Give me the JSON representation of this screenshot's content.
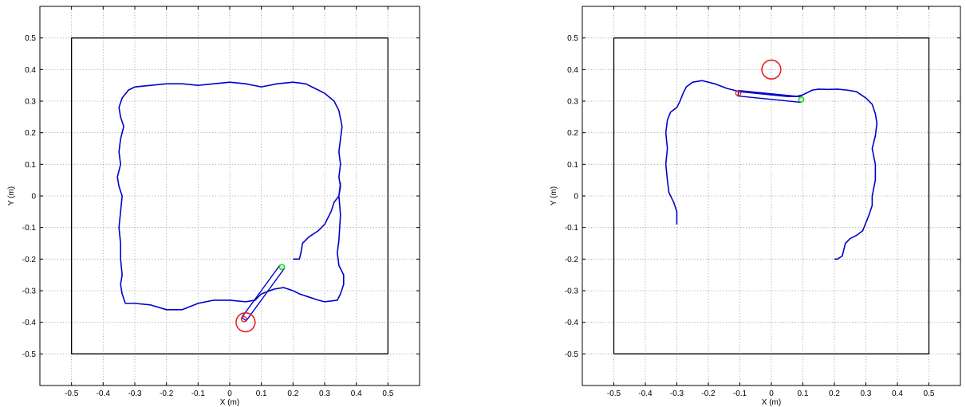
{
  "colors": {
    "path": "#0000cc",
    "target": "#e8231f",
    "tip": "#22cc22",
    "frame": "#000000",
    "grid": "#9a9a9a"
  },
  "chart_data": [
    {
      "type": "line",
      "xlabel": "X (m)",
      "ylabel": "Y (m)",
      "xlim": [
        -0.6,
        0.6
      ],
      "ylim": [
        -0.6,
        0.6
      ],
      "xticks": [
        "-0.5",
        "-0.4",
        "-0.3",
        "-0.2",
        "-0.1",
        "0",
        "0.1",
        "0.2",
        "0.3",
        "0.4",
        "0.5"
      ],
      "yticks": [
        "-0.5",
        "-0.4",
        "-0.3",
        "-0.2",
        "-0.1",
        "0",
        "0.1",
        "0.2",
        "0.3",
        "0.4",
        "0.5"
      ],
      "grid": true,
      "workspace_boundary": [
        [
          -0.5,
          -0.5
        ],
        [
          0.5,
          -0.5
        ],
        [
          0.5,
          0.5
        ],
        [
          -0.5,
          0.5
        ]
      ],
      "trajectory": [
        [
          0.2,
          -0.2
        ],
        [
          0.22,
          -0.2
        ],
        [
          0.225,
          -0.18
        ],
        [
          0.23,
          -0.15
        ],
        [
          0.25,
          -0.13
        ],
        [
          0.28,
          -0.11
        ],
        [
          0.3,
          -0.09
        ],
        [
          0.32,
          -0.05
        ],
        [
          0.33,
          -0.02
        ],
        [
          0.345,
          0.0
        ],
        [
          0.35,
          0.04
        ],
        [
          0.345,
          0.0
        ],
        [
          0.35,
          -0.06
        ],
        [
          0.345,
          -0.14
        ],
        [
          0.34,
          -0.18
        ],
        [
          0.345,
          -0.22
        ],
        [
          0.36,
          -0.25
        ],
        [
          0.36,
          -0.28
        ],
        [
          0.35,
          -0.31
        ],
        [
          0.34,
          -0.33
        ],
        [
          0.3,
          -0.335
        ],
        [
          0.28,
          -0.33
        ],
        [
          0.25,
          -0.32
        ],
        [
          0.22,
          -0.31
        ],
        [
          0.2,
          -0.3
        ],
        [
          0.17,
          -0.29
        ],
        [
          0.14,
          -0.295
        ],
        [
          0.1,
          -0.31
        ],
        [
          0.08,
          -0.33
        ],
        [
          0.05,
          -0.335
        ],
        [
          0.0,
          -0.33
        ],
        [
          -0.05,
          -0.33
        ],
        [
          -0.1,
          -0.34
        ],
        [
          -0.15,
          -0.36
        ],
        [
          -0.2,
          -0.36
        ],
        [
          -0.25,
          -0.345
        ],
        [
          -0.3,
          -0.34
        ],
        [
          -0.33,
          -0.34
        ],
        [
          -0.34,
          -0.31
        ],
        [
          -0.345,
          -0.28
        ],
        [
          -0.34,
          -0.25
        ],
        [
          -0.345,
          -0.2
        ],
        [
          -0.345,
          -0.15
        ],
        [
          -0.35,
          -0.1
        ],
        [
          -0.345,
          -0.05
        ],
        [
          -0.34,
          0.0
        ],
        [
          -0.35,
          0.03
        ],
        [
          -0.355,
          0.06
        ],
        [
          -0.345,
          0.1
        ],
        [
          -0.35,
          0.14
        ],
        [
          -0.345,
          0.18
        ],
        [
          -0.335,
          0.22
        ],
        [
          -0.345,
          0.25
        ],
        [
          -0.35,
          0.28
        ],
        [
          -0.34,
          0.31
        ],
        [
          -0.32,
          0.335
        ],
        [
          -0.3,
          0.345
        ],
        [
          -0.25,
          0.35
        ],
        [
          -0.2,
          0.355
        ],
        [
          -0.15,
          0.355
        ],
        [
          -0.1,
          0.35
        ],
        [
          -0.05,
          0.355
        ],
        [
          0.0,
          0.36
        ],
        [
          0.05,
          0.355
        ],
        [
          0.1,
          0.345
        ],
        [
          0.15,
          0.355
        ],
        [
          0.2,
          0.36
        ],
        [
          0.24,
          0.355
        ],
        [
          0.27,
          0.34
        ],
        [
          0.3,
          0.325
        ],
        [
          0.33,
          0.3
        ],
        [
          0.345,
          0.27
        ],
        [
          0.355,
          0.22
        ],
        [
          0.35,
          0.18
        ],
        [
          0.345,
          0.14
        ],
        [
          0.35,
          0.1
        ],
        [
          0.345,
          0.06
        ],
        [
          0.35,
          0.03
        ],
        [
          0.345,
          0.0
        ]
      ],
      "arm": [
        [
          0.045,
          -0.39
        ],
        [
          0.165,
          -0.225
        ]
      ],
      "arm_base": [
        0.045,
        -0.39
      ],
      "end_effector": [
        0.165,
        -0.225
      ],
      "target": {
        "x": 0.05,
        "y": -0.4,
        "r": 0.03
      }
    },
    {
      "type": "line",
      "xlabel": "X (m)",
      "ylabel": "Y (m)",
      "xlim": [
        -0.6,
        0.6
      ],
      "ylim": [
        -0.6,
        0.6
      ],
      "xticks": [
        "-0.5",
        "-0.4",
        "-0.3",
        "-0.2",
        "-0.1",
        "0",
        "0.1",
        "0.2",
        "0.3",
        "0.4",
        "0.5"
      ],
      "yticks": [
        "-0.5",
        "-0.4",
        "-0.3",
        "-0.2",
        "-0.1",
        "0",
        "0.1",
        "0.2",
        "0.3",
        "0.4",
        "0.5"
      ],
      "grid": true,
      "workspace_boundary": [
        [
          -0.5,
          -0.5
        ],
        [
          0.5,
          -0.5
        ],
        [
          0.5,
          0.5
        ],
        [
          -0.5,
          0.5
        ]
      ],
      "trajectory": [
        [
          -0.3,
          -0.09
        ],
        [
          -0.3,
          -0.05
        ],
        [
          -0.31,
          -0.02
        ],
        [
          -0.325,
          0.01
        ],
        [
          -0.33,
          0.05
        ],
        [
          -0.335,
          0.1
        ],
        [
          -0.33,
          0.15
        ],
        [
          -0.335,
          0.2
        ],
        [
          -0.33,
          0.24
        ],
        [
          -0.32,
          0.265
        ],
        [
          -0.3,
          0.28
        ],
        [
          -0.29,
          0.3
        ],
        [
          -0.28,
          0.325
        ],
        [
          -0.27,
          0.345
        ],
        [
          -0.25,
          0.36
        ],
        [
          -0.22,
          0.365
        ],
        [
          -0.18,
          0.355
        ],
        [
          -0.14,
          0.34
        ],
        [
          -0.1,
          0.33
        ],
        [
          -0.05,
          0.325
        ],
        [
          0.0,
          0.32
        ],
        [
          0.05,
          0.315
        ],
        [
          0.08,
          0.315
        ],
        [
          0.1,
          0.32
        ],
        [
          0.13,
          0.335
        ],
        [
          0.15,
          0.338
        ],
        [
          0.18,
          0.337
        ],
        [
          0.21,
          0.338
        ],
        [
          0.24,
          0.335
        ],
        [
          0.27,
          0.33
        ],
        [
          0.3,
          0.31
        ],
        [
          0.32,
          0.29
        ],
        [
          0.33,
          0.26
        ],
        [
          0.335,
          0.23
        ],
        [
          0.33,
          0.19
        ],
        [
          0.32,
          0.15
        ],
        [
          0.33,
          0.1
        ],
        [
          0.33,
          0.05
        ],
        [
          0.32,
          0.0
        ],
        [
          0.32,
          -0.03
        ],
        [
          0.31,
          -0.06
        ],
        [
          0.29,
          -0.11
        ],
        [
          0.27,
          -0.125
        ],
        [
          0.25,
          -0.135
        ],
        [
          0.235,
          -0.15
        ],
        [
          0.23,
          -0.17
        ],
        [
          0.225,
          -0.19
        ],
        [
          0.21,
          -0.2
        ],
        [
          0.2,
          -0.2
        ]
      ],
      "arm": [
        [
          -0.105,
          0.325
        ],
        [
          0.095,
          0.305
        ]
      ],
      "arm_base": [
        -0.105,
        0.325
      ],
      "end_effector": [
        0.095,
        0.305
      ],
      "target": {
        "x": 0.0,
        "y": 0.4,
        "r": 0.03
      }
    }
  ]
}
